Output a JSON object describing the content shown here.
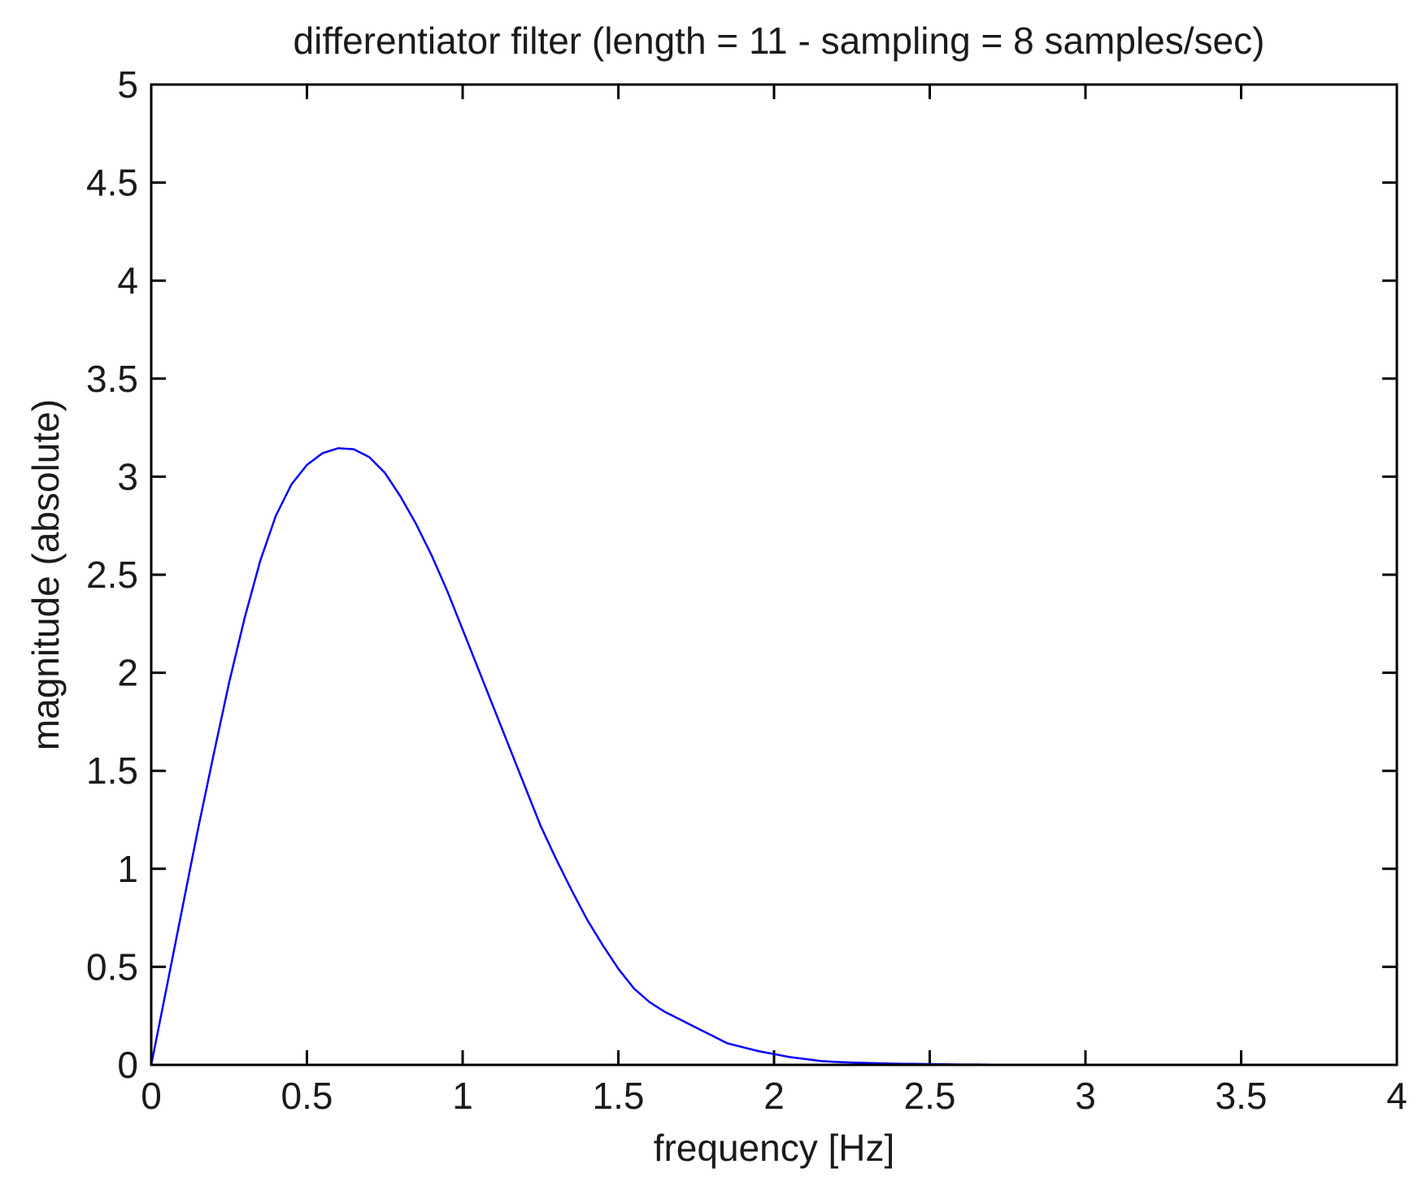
{
  "chart_data": {
    "type": "line",
    "title": "differentiator filter (length = 11 - sampling = 8 samples/sec)",
    "xlabel": "frequency [Hz]",
    "ylabel": "magnitude (absolute)",
    "xlim": [
      0,
      4
    ],
    "ylim": [
      0,
      5
    ],
    "xticks": [
      "0",
      "0.5",
      "1",
      "1.5",
      "2",
      "2.5",
      "3",
      "3.5",
      "4"
    ],
    "yticks": [
      "0",
      "0.5",
      "1",
      "1.5",
      "2",
      "2.5",
      "3",
      "3.5",
      "4",
      "4.5",
      "5"
    ],
    "grid": false,
    "legend": false,
    "series": [
      {
        "color": "#0000ff",
        "x": [
          0,
          0.05,
          0.1,
          0.15,
          0.2,
          0.25,
          0.3,
          0.35,
          0.4,
          0.45,
          0.5,
          0.55,
          0.6,
          0.65,
          0.7,
          0.75,
          0.8,
          0.85,
          0.9,
          0.95,
          1.0,
          1.05,
          1.1,
          1.15,
          1.2,
          1.25,
          1.3,
          1.35,
          1.4,
          1.45,
          1.5,
          1.55,
          1.6,
          1.65,
          1.7,
          1.75,
          1.8,
          1.85,
          1.9,
          1.95,
          2.0,
          2.05,
          2.1,
          2.15,
          2.2,
          2.25,
          2.3,
          2.35,
          2.4,
          2.45,
          2.5,
          2.55,
          2.6,
          2.65,
          2.7,
          2.75,
          2.8,
          2.9,
          3.0,
          3.2,
          3.4,
          3.6,
          3.8,
          3.95
        ],
        "y": [
          0,
          0.4,
          0.8,
          1.2,
          1.58,
          1.95,
          2.28,
          2.57,
          2.8,
          2.96,
          3.06,
          3.12,
          3.145,
          3.14,
          3.1,
          3.02,
          2.9,
          2.76,
          2.6,
          2.42,
          2.22,
          2.02,
          1.82,
          1.62,
          1.42,
          1.22,
          1.05,
          0.89,
          0.74,
          0.61,
          0.49,
          0.39,
          0.32,
          0.27,
          0.23,
          0.19,
          0.15,
          0.11,
          0.09,
          0.07,
          0.055,
          0.04,
          0.03,
          0.02,
          0.015,
          0.012,
          0.01,
          0.008,
          0.006,
          0.005,
          0.004,
          0.003,
          0.002,
          0.002,
          0.001,
          0.001,
          0.001,
          0.001,
          0.001,
          0.001,
          0.001,
          0.001,
          0.001,
          0.001
        ]
      }
    ]
  }
}
